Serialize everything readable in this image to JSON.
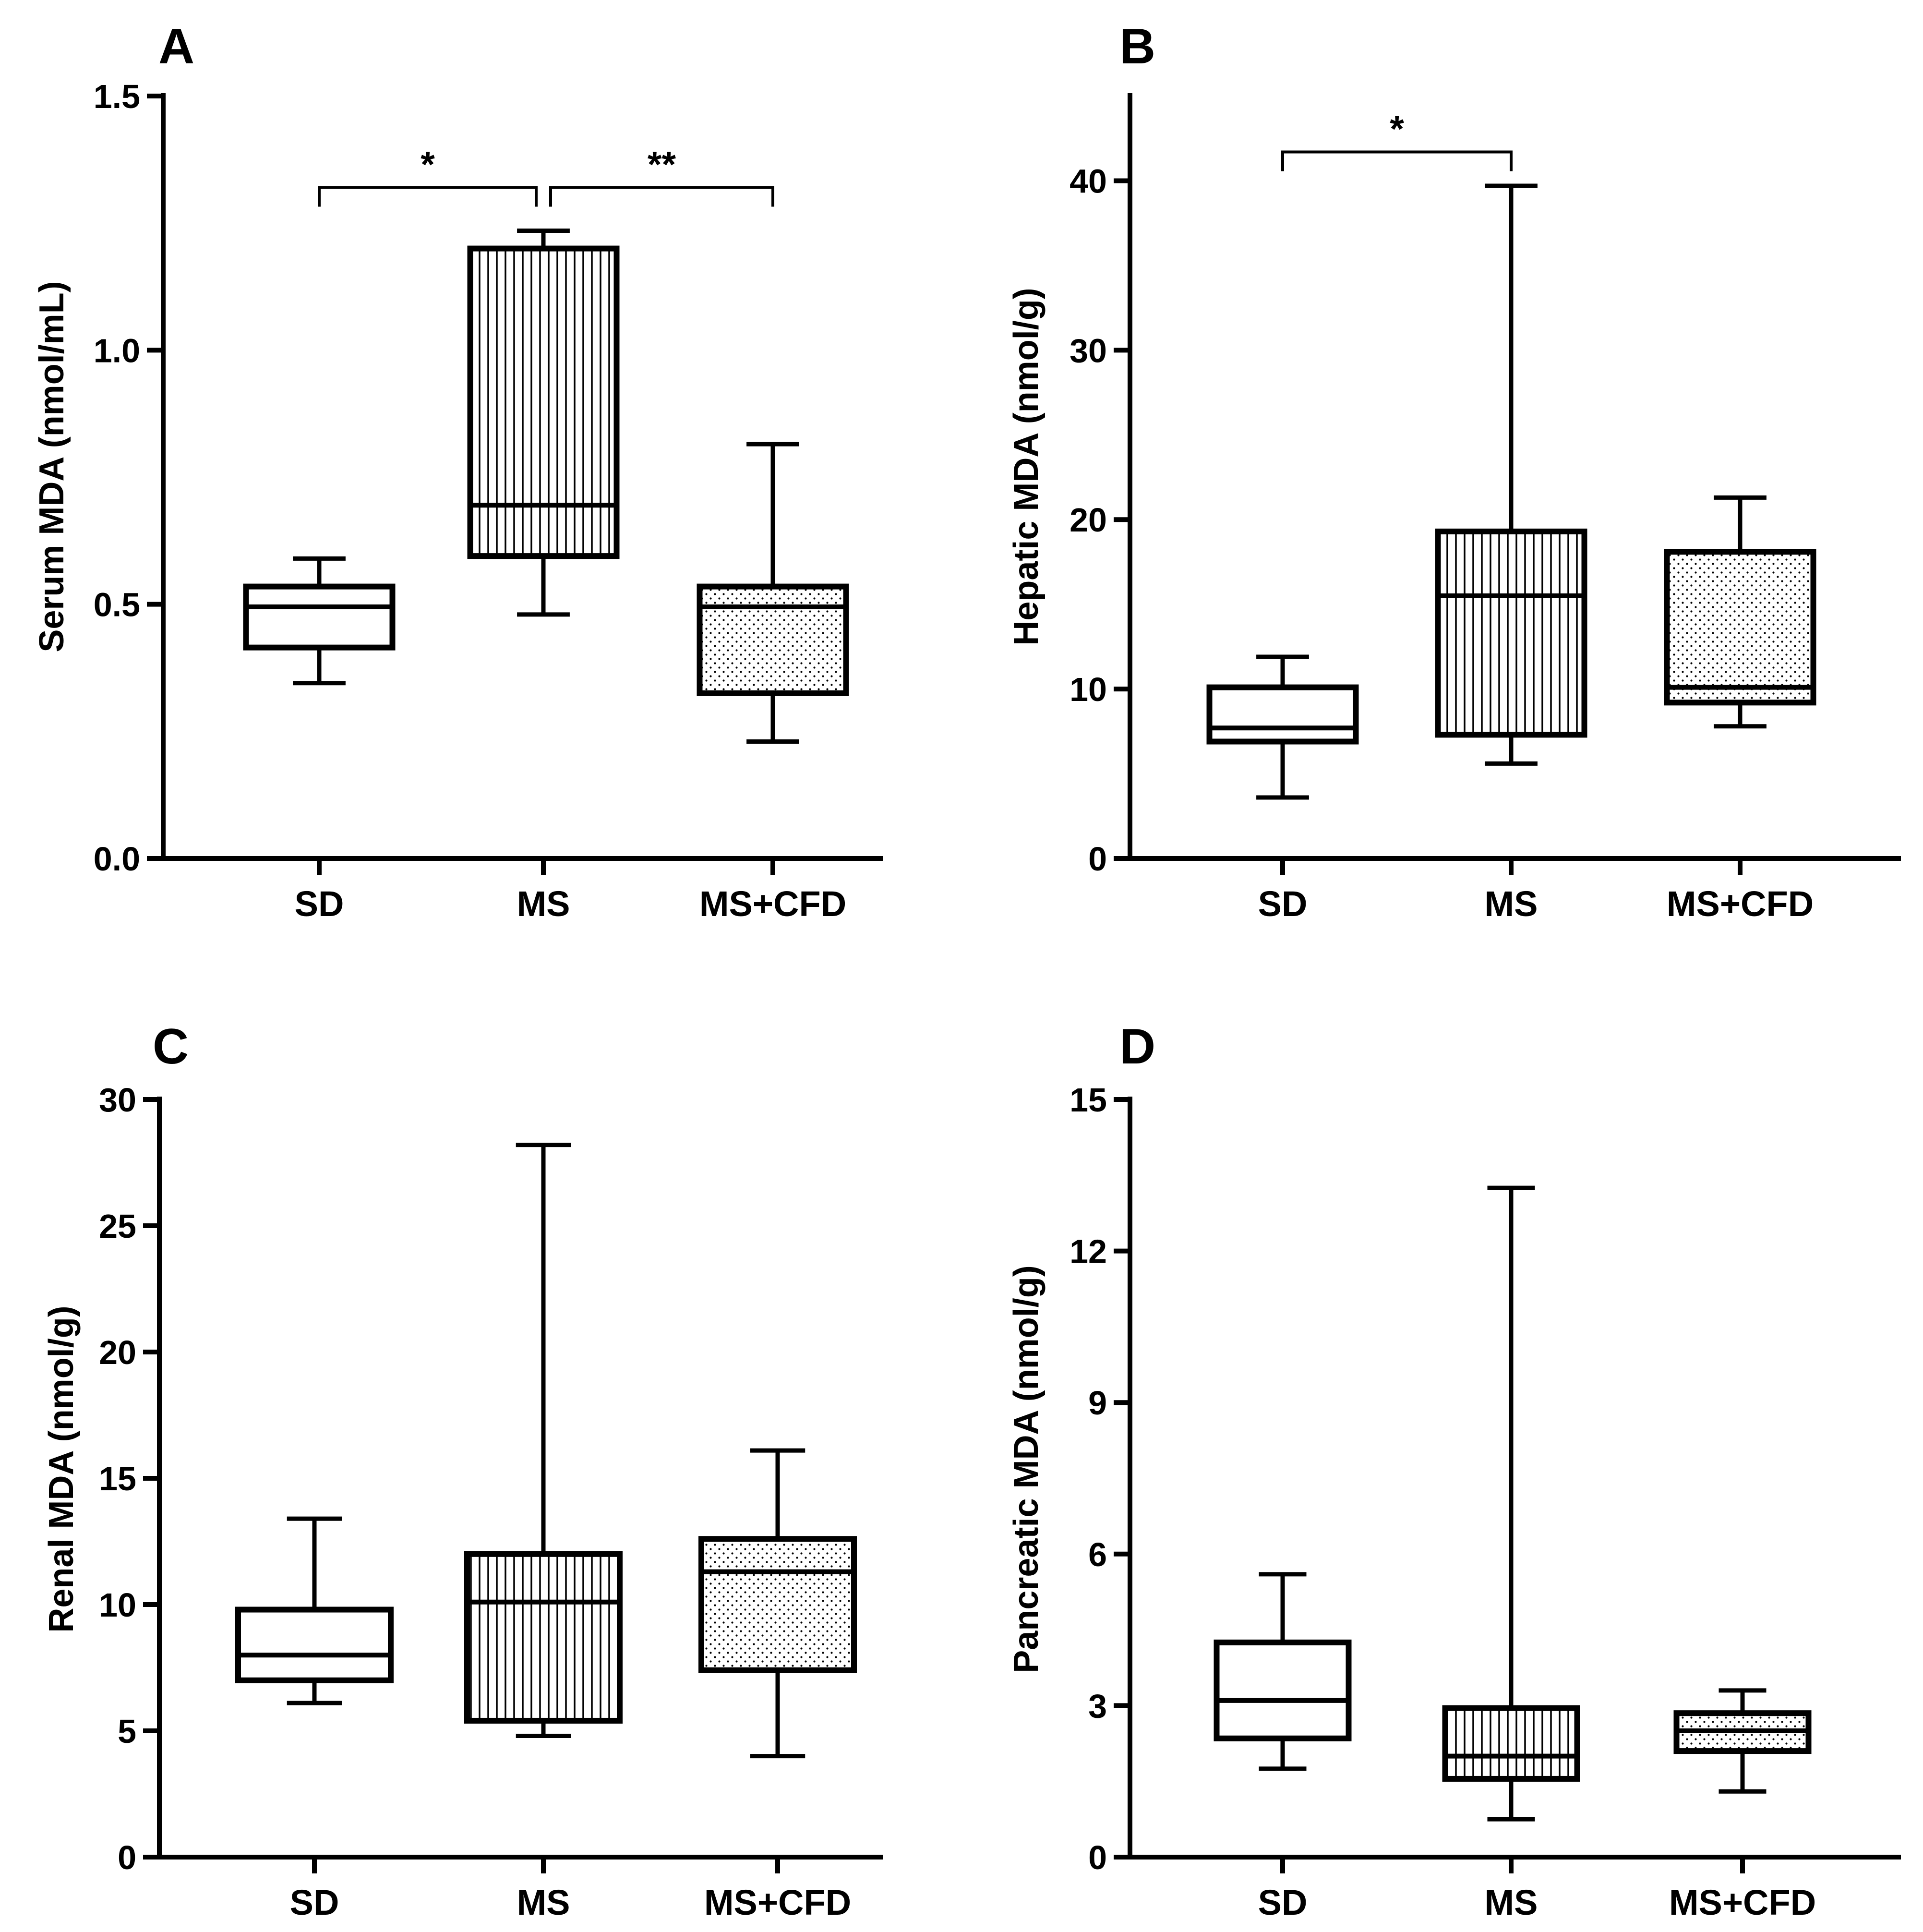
{
  "chart_data": [
    {
      "panel": "A",
      "type": "box",
      "ylabel": "Serum MDA (nmol/mL)",
      "ylim": [
        0,
        1.5
      ],
      "yticks": [
        "0.0",
        "0.5",
        "1.0",
        "1.5"
      ],
      "categories": [
        "SD",
        "MS",
        "MS+CFD"
      ],
      "fills": [
        "white",
        "vlines",
        "dots"
      ],
      "boxes": [
        {
          "min": 0.345,
          "q1": 0.415,
          "median": 0.495,
          "q3": 0.535,
          "max": 0.59
        },
        {
          "min": 0.48,
          "q1": 0.595,
          "median": 0.695,
          "q3": 1.2,
          "max": 1.235
        },
        {
          "min": 0.23,
          "q1": 0.325,
          "median": 0.495,
          "q3": 0.535,
          "max": 0.815
        }
      ],
      "significance": [
        {
          "from": 0,
          "to": 1,
          "y": 1.32,
          "label": "*"
        },
        {
          "from": 1,
          "to": 2,
          "y": 1.32,
          "label": "**"
        }
      ]
    },
    {
      "panel": "B",
      "type": "box",
      "ylabel": "Hepatic MDA (nmol/g)",
      "ylim": [
        0,
        45
      ],
      "yticks": [
        "0",
        "10",
        "20",
        "30",
        "40"
      ],
      "categories": [
        "SD",
        "MS",
        "MS+CFD"
      ],
      "fills": [
        "white",
        "vlines",
        "dots"
      ],
      "boxes": [
        {
          "min": 3.6,
          "q1": 6.9,
          "median": 7.7,
          "q3": 10.1,
          "max": 11.9
        },
        {
          "min": 5.6,
          "q1": 7.3,
          "median": 15.5,
          "q3": 19.3,
          "max": 39.7
        },
        {
          "min": 7.8,
          "q1": 9.2,
          "median": 10.1,
          "q3": 18.1,
          "max": 21.3
        }
      ],
      "significance": [
        {
          "from": 0,
          "to": 1,
          "y": 41.7,
          "label": "*"
        }
      ]
    },
    {
      "panel": "C",
      "type": "box",
      "ylabel": "Renal MDA (nmol/g)",
      "ylim": [
        0,
        30
      ],
      "yticks": [
        "0",
        "5",
        "10",
        "15",
        "20",
        "25",
        "30"
      ],
      "categories": [
        "SD",
        "MS",
        "MS+CFD"
      ],
      "fills": [
        "white",
        "vlines",
        "dots"
      ],
      "boxes": [
        {
          "min": 6.1,
          "q1": 7.0,
          "median": 8.0,
          "q3": 9.8,
          "max": 13.4
        },
        {
          "min": 4.8,
          "q1": 5.4,
          "median": 10.1,
          "q3": 12.0,
          "max": 28.2
        },
        {
          "min": 4.0,
          "q1": 7.4,
          "median": 11.3,
          "q3": 12.6,
          "max": 16.1
        }
      ],
      "significance": []
    },
    {
      "panel": "D",
      "type": "box",
      "ylabel": "Pancreatic MDA (nmol/g)",
      "ylim": [
        0,
        15
      ],
      "yticks": [
        "0",
        "3",
        "6",
        "9",
        "12",
        "15"
      ],
      "categories": [
        "SD",
        "MS",
        "MS+CFD"
      ],
      "fills": [
        "white",
        "vlines",
        "dots"
      ],
      "boxes": [
        {
          "min": 1.75,
          "q1": 2.35,
          "median": 3.1,
          "q3": 4.25,
          "max": 5.6
        },
        {
          "min": 0.75,
          "q1": 1.55,
          "median": 2.0,
          "q3": 2.95,
          "max": 13.25
        },
        {
          "min": 1.3,
          "q1": 2.1,
          "median": 2.5,
          "q3": 2.85,
          "max": 3.3
        }
      ],
      "significance": []
    }
  ]
}
